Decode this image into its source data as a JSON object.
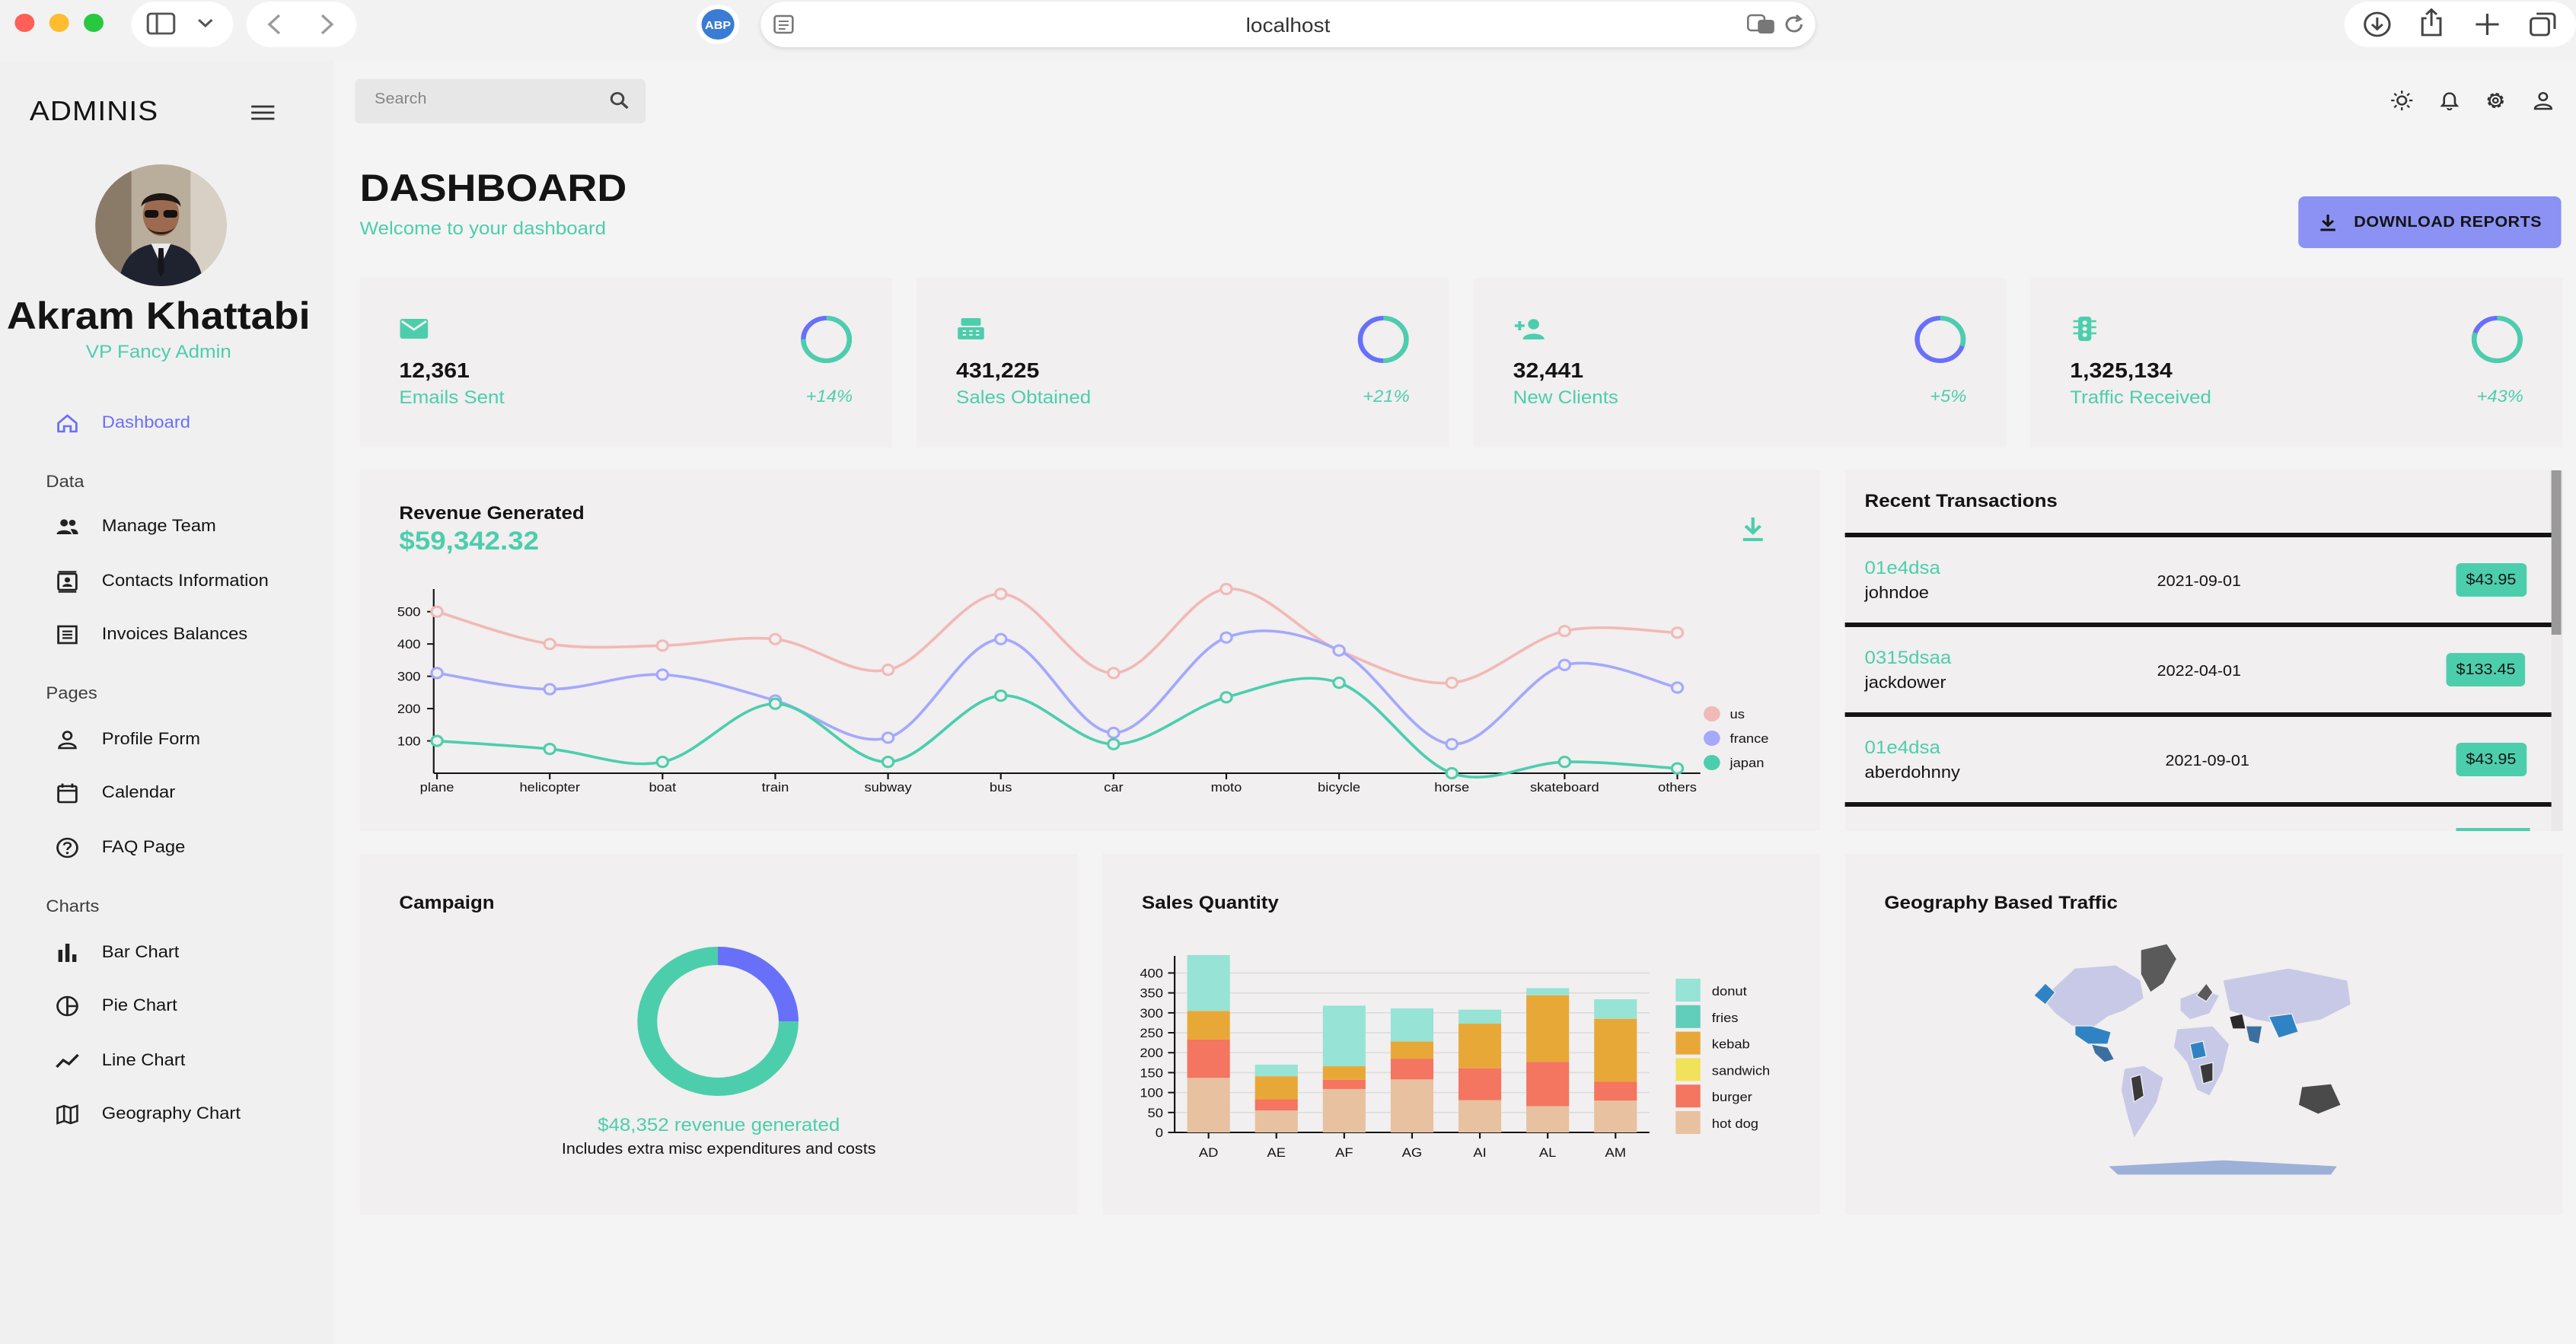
{
  "browser": {
    "url": "localhost",
    "adblock": "ABP"
  },
  "sidebar": {
    "brand": "ADMINIS",
    "user_name": "Akram Khattabi",
    "user_role": "VP Fancy Admin",
    "items": {
      "dashboard": "Dashboard",
      "section_data": "Data",
      "team": "Manage Team",
      "contacts": "Contacts Information",
      "invoices": "Invoices Balances",
      "section_pages": "Pages",
      "profile": "Profile Form",
      "calendar": "Calendar",
      "faq": "FAQ Page",
      "section_charts": "Charts",
      "bar": "Bar Chart",
      "pie": "Pie Chart",
      "line": "Line Chart",
      "geo": "Geography Chart"
    }
  },
  "topbar": {
    "search_placeholder": "Search"
  },
  "header": {
    "title": "DASHBOARD",
    "subtitle": "Welcome to your dashboard",
    "download": "DOWNLOAD REPORTS"
  },
  "stats": [
    {
      "value": "12,361",
      "label": "Emails Sent",
      "increase": "+14%",
      "progress": 0.75,
      "icon": "email-icon"
    },
    {
      "value": "431,225",
      "label": "Sales Obtained",
      "increase": "+21%",
      "progress": 0.5,
      "icon": "point-of-sale-icon"
    },
    {
      "value": "32,441",
      "label": "New Clients",
      "increase": "+5%",
      "progress": 0.3,
      "icon": "person-add-icon"
    },
    {
      "value": "1,325,134",
      "label": "Traffic Received",
      "increase": "+43%",
      "progress": 0.8,
      "icon": "traffic-icon"
    }
  ],
  "revenue": {
    "title": "Revenue Generated",
    "amount": "$59,342.32"
  },
  "transactions": {
    "title": "Recent Transactions",
    "rows": [
      {
        "txId": "01e4dsa",
        "user": "johndoe",
        "date": "2021-09-01",
        "cost": "$43.95"
      },
      {
        "txId": "0315dsaa",
        "user": "jackdower",
        "date": "2022-04-01",
        "cost": "$133.45"
      },
      {
        "txId": "01e4dsa",
        "user": "aberdohnny",
        "date": "2021-09-01",
        "cost": "$43.95"
      }
    ]
  },
  "campaign": {
    "title": "Campaign",
    "revenue": "$48,352 revenue generated",
    "note": "Includes extra misc expenditures and costs",
    "progress": 0.25
  },
  "sales_quantity": {
    "title": "Sales Quantity"
  },
  "geography": {
    "title": "Geography Based Traffic"
  },
  "colors": {
    "accent": "#4cceac",
    "indigo": "#6870fa",
    "button": "#8b92f4"
  },
  "chart_data": [
    {
      "type": "line",
      "categories": [
        "plane",
        "helicopter",
        "boat",
        "train",
        "subway",
        "bus",
        "car",
        "moto",
        "bicycle",
        "horse",
        "skateboard",
        "others"
      ],
      "yticks": [
        100,
        200,
        300,
        400,
        500
      ],
      "ylim": [
        0,
        570
      ],
      "legend": "right",
      "series": [
        {
          "name": "us",
          "color": "#f1b9b7",
          "values": [
            500,
            400,
            395,
            415,
            320,
            555,
            310,
            570,
            380,
            280,
            440,
            435
          ]
        },
        {
          "name": "france",
          "color": "#a4a9fc",
          "values": [
            310,
            260,
            305,
            225,
            110,
            415,
            125,
            420,
            380,
            90,
            335,
            265
          ]
        },
        {
          "name": "japan",
          "color": "#4cceac",
          "values": [
            100,
            75,
            35,
            215,
            35,
            240,
            90,
            235,
            280,
            0,
            35,
            15
          ]
        }
      ]
    },
    {
      "type": "bar",
      "stacked": true,
      "categories": [
        "AD",
        "AE",
        "AF",
        "AG",
        "AI",
        "AL",
        "AM"
      ],
      "yticks": [
        0,
        50,
        100,
        150,
        200,
        250,
        300,
        350,
        400
      ],
      "ylim": [
        0,
        420
      ],
      "legend": "right",
      "series": [
        {
          "name": "hot dog",
          "color": "#e8c1a0",
          "values": [
            137,
            55,
            109,
            133,
            81,
            66,
            80
          ]
        },
        {
          "name": "burger",
          "color": "#f47560",
          "values": [
            96,
            28,
            23,
            52,
            80,
            111,
            47
          ]
        },
        {
          "name": "sandwich",
          "color": "#f1e15b",
          "values": [
            0,
            0,
            0,
            0,
            0,
            0,
            0
          ]
        },
        {
          "name": "kebab",
          "color": "#e8a838",
          "values": [
            72,
            58,
            34,
            43,
            112,
            167,
            158
          ]
        },
        {
          "name": "fries",
          "color": "#61cdbb",
          "values": [
            0,
            0,
            0,
            0,
            0,
            0,
            0
          ]
        },
        {
          "name": "donut",
          "color": "#97e3d5",
          "values": [
            140,
            29,
            152,
            83,
            35,
            18,
            49
          ]
        }
      ]
    }
  ]
}
